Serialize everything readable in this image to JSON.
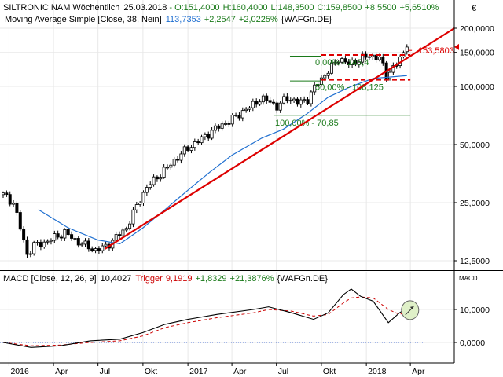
{
  "header": {
    "instrument": "SILTRONIC NAM Wöchentlich",
    "date": "25.03.2018",
    "open": "O:151,4000",
    "high": "H:160,4000",
    "low": "L:148,3500",
    "close": "C:159,8500",
    "change_abs": "+8,5500",
    "change_pct": "+5,6510%",
    "ma_label": "Moving Average Simple [Close, 38, Nein]",
    "ma_value": "113,7353",
    "ma_change_abs": "+2,2547",
    "ma_change_pct": "+2,0225%",
    "ma_source": "{WAFGn.DE}",
    "currency_icon": "€"
  },
  "macd_header": {
    "label": "MACD [Close, 12, 26, 9]",
    "value": "10,4027",
    "trigger_label": "Trigger",
    "trigger_value": "9,1919",
    "change_abs": "+1,8329",
    "change_pct": "+21,3876%",
    "source": "{WAFGn.DE}",
    "panel_tag": "MACD"
  },
  "colors": {
    "candle": "#000000",
    "ma": "#1f6fd0",
    "trend": "#dd0000",
    "fib": "#1a7a1a",
    "macd": "#000000",
    "trigger": "#cc0000",
    "highlight_fill": "#dff0c8",
    "highlight_stroke": "#666666"
  },
  "chart_data": [
    {
      "type": "candlestick",
      "scale": "log",
      "ylim": [
        11000,
        220000
      ],
      "y_ticks": [
        200000,
        150000,
        100000,
        50000,
        25000,
        12500
      ],
      "y_tick_labels": [
        "200,0000",
        "150,0000",
        "100,0000",
        "50,0000",
        "25,0000",
        "12,5000"
      ],
      "x_ticks": [
        {
          "label": "2016",
          "date": "2016-01-01"
        },
        {
          "label": "Apr",
          "date": "2016-04-01"
        },
        {
          "label": "Jul",
          "date": "2016-07-01"
        },
        {
          "label": "Okt",
          "date": "2016-10-01"
        },
        {
          "label": "2017",
          "date": "2017-01-01"
        },
        {
          "label": "Apr",
          "date": "2017-04-01"
        },
        {
          "label": "Jul",
          "date": "2017-07-01"
        },
        {
          "label": "Okt",
          "date": "2017-10-01"
        },
        {
          "label": "2018",
          "date": "2018-01-01"
        },
        {
          "label": "Apr",
          "date": "2018-04-01"
        }
      ],
      "close_series": [
        [
          "2015-12-20",
          27500
        ],
        [
          "2016-01-10",
          25000
        ],
        [
          "2016-01-24",
          18500
        ],
        [
          "2016-02-07",
          13500
        ],
        [
          "2016-02-21",
          15000
        ],
        [
          "2016-03-13",
          15500
        ],
        [
          "2016-04-03",
          16500
        ],
        [
          "2016-04-24",
          17500
        ],
        [
          "2016-05-15",
          16000
        ],
        [
          "2016-06-05",
          15000
        ],
        [
          "2016-06-26",
          14200
        ],
        [
          "2016-07-17",
          14800
        ],
        [
          "2016-08-07",
          16500
        ],
        [
          "2016-08-28",
          18500
        ],
        [
          "2016-09-11",
          22000
        ],
        [
          "2016-09-25",
          26000
        ],
        [
          "2016-10-09",
          30000
        ],
        [
          "2016-10-30",
          34000
        ],
        [
          "2016-11-20",
          38000
        ],
        [
          "2016-12-11",
          43000
        ],
        [
          "2017-01-01",
          48000
        ],
        [
          "2017-01-22",
          52000
        ],
        [
          "2017-02-12",
          57000
        ],
        [
          "2017-03-05",
          62000
        ],
        [
          "2017-03-26",
          66000
        ],
        [
          "2017-04-16",
          72000
        ],
        [
          "2017-05-07",
          78000
        ],
        [
          "2017-05-28",
          86000
        ],
        [
          "2017-06-18",
          84000
        ],
        [
          "2017-07-02",
          78000
        ],
        [
          "2017-07-23",
          88000
        ],
        [
          "2017-08-13",
          82000
        ],
        [
          "2017-09-03",
          86000
        ],
        [
          "2017-09-24",
          105000
        ],
        [
          "2017-10-15",
          120000
        ],
        [
          "2017-11-05",
          140000
        ],
        [
          "2017-11-26",
          130000
        ],
        [
          "2017-12-17",
          137000
        ],
        [
          "2018-01-07",
          145000
        ],
        [
          "2018-01-28",
          140000
        ],
        [
          "2018-02-11",
          115000
        ],
        [
          "2018-03-04",
          130000
        ],
        [
          "2018-03-25",
          159850
        ]
      ],
      "moving_average": [
        [
          "2016-03-01",
          23000
        ],
        [
          "2016-05-01",
          18500
        ],
        [
          "2016-07-01",
          16000
        ],
        [
          "2016-08-15",
          15300
        ],
        [
          "2016-10-01",
          18500
        ],
        [
          "2016-11-15",
          23000
        ],
        [
          "2017-01-01",
          29000
        ],
        [
          "2017-02-15",
          36000
        ],
        [
          "2017-04-01",
          44000
        ],
        [
          "2017-06-01",
          54000
        ],
        [
          "2017-07-15",
          60000
        ],
        [
          "2017-09-01",
          72000
        ],
        [
          "2017-10-15",
          88000
        ],
        [
          "2017-12-01",
          100000
        ],
        [
          "2018-01-15",
          110000
        ],
        [
          "2018-03-25",
          113735
        ]
      ],
      "trendline": {
        "from": [
          "2016-07-15",
          14400
        ],
        "to": [
          "2018-06-30",
          200000
        ]
      },
      "fibonacci": [
        {
          "label": "0,00% - 145,4",
          "value": 145400,
          "style": "dashed-red",
          "from": "2017-09-15"
        },
        {
          "label": "50,00% - 108,125",
          "value": 108125,
          "style": "dashed-red",
          "from": "2017-09-15"
        },
        {
          "label": "100,00% - 70,85",
          "value": 70850,
          "style": "solid-green",
          "from": "2017-06-25"
        }
      ],
      "annotation": {
        "label": "153,5803",
        "value": 153580
      },
      "last_price_marker": 159850
    },
    {
      "type": "line",
      "title": "MACD [Close, 12, 26, 9]",
      "ylim": [
        -3,
        20
      ],
      "y_ticks": [
        10,
        0
      ],
      "y_tick_labels": [
        "10,0000",
        "0,0000"
      ],
      "zero_line": true,
      "series": [
        {
          "name": "MACD",
          "values": [
            [
              "2015-12-20",
              0
            ],
            [
              "2016-02-15",
              -1.5
            ],
            [
              "2016-04-15",
              -1.0
            ],
            [
              "2016-06-15",
              0.5
            ],
            [
              "2016-08-15",
              1.0
            ],
            [
              "2016-10-01",
              3.0
            ],
            [
              "2016-11-15",
              5.5
            ],
            [
              "2017-01-01",
              7.0
            ],
            [
              "2017-03-01",
              8.5
            ],
            [
              "2017-05-15",
              10.0
            ],
            [
              "2017-06-15",
              10.8
            ],
            [
              "2017-08-01",
              9.0
            ],
            [
              "2017-09-15",
              7.0
            ],
            [
              "2017-10-15",
              9.0
            ],
            [
              "2017-11-15",
              14.5
            ],
            [
              "2017-12-01",
              16.2
            ],
            [
              "2017-12-20",
              14.0
            ],
            [
              "2018-01-15",
              12.5
            ],
            [
              "2018-02-15",
              6.0
            ],
            [
              "2018-03-10",
              9.0
            ],
            [
              "2018-03-25",
              10.4
            ]
          ]
        },
        {
          "name": "Trigger",
          "values": [
            [
              "2015-12-20",
              0
            ],
            [
              "2016-02-15",
              -1.0
            ],
            [
              "2016-04-15",
              -0.8
            ],
            [
              "2016-06-15",
              0.0
            ],
            [
              "2016-08-15",
              0.5
            ],
            [
              "2016-10-01",
              2.0
            ],
            [
              "2016-11-15",
              4.5
            ],
            [
              "2017-01-01",
              6.0
            ],
            [
              "2017-03-01",
              7.5
            ],
            [
              "2017-05-15",
              9.0
            ],
            [
              "2017-06-15",
              10.0
            ],
            [
              "2017-08-01",
              9.5
            ],
            [
              "2017-09-15",
              8.0
            ],
            [
              "2017-10-15",
              8.5
            ],
            [
              "2017-11-15",
              12.0
            ],
            [
              "2017-12-01",
              13.5
            ],
            [
              "2017-12-20",
              13.8
            ],
            [
              "2018-01-15",
              13.5
            ],
            [
              "2018-02-15",
              10.0
            ],
            [
              "2018-03-10",
              8.5
            ],
            [
              "2018-03-25",
              9.19
            ]
          ]
        }
      ]
    }
  ]
}
